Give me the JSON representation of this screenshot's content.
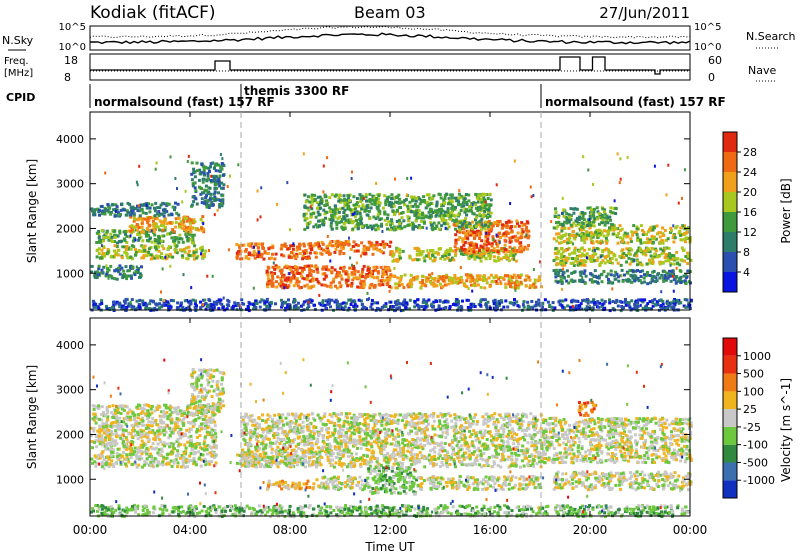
{
  "header": {
    "station": "Kodiak (fitACF)",
    "beam": "Beam 03",
    "date": "27/Jun/2011"
  },
  "noise_panel": {
    "left_label": "N.Sky",
    "right_label": "N.Search",
    "left_ticks": [
      "10^5",
      "10^0"
    ],
    "right_ticks": [
      "10^5",
      "10^0"
    ]
  },
  "freq_panel": {
    "left_label_1": "Freq.",
    "left_label_2": "[MHz]",
    "left_ticks": [
      "18",
      "8"
    ],
    "right_label": "Nave",
    "right_ticks": [
      "60",
      "0"
    ]
  },
  "cpid_panel": {
    "label": "CPID",
    "modes": [
      {
        "text": "normalsound (fast) 157 RF",
        "start_hour": 0
      },
      {
        "text": "themis 3300 RF",
        "start_hour": 6
      },
      {
        "text": "normalsound (fast) 157 RF",
        "start_hour": 18
      }
    ]
  },
  "x_axis": {
    "label": "Time UT",
    "ticks": [
      "00:00",
      "04:00",
      "08:00",
      "12:00",
      "16:00",
      "20:00",
      "00:00"
    ],
    "range_hours": [
      0,
      24
    ]
  },
  "chart_data": [
    {
      "type": "heatmap",
      "quantity": "Power",
      "ylabel": "Slant Range [km]",
      "yticks": [
        1000,
        2000,
        3000,
        4000
      ],
      "ylim": [
        180,
        4600
      ],
      "colorbar": {
        "label": "Power [dB]",
        "ticks": [
          "4",
          "8",
          "12",
          "16",
          "20",
          "24",
          "28"
        ],
        "colors": [
          "#0a14e0",
          "#2a4fb0",
          "#2e7d6b",
          "#3f9a3c",
          "#a8c81e",
          "#f0a01a",
          "#f06a14",
          "#e02a10"
        ]
      },
      "bands": [
        {
          "t0": 0.2,
          "t1": 4.6,
          "r0": 1350,
          "r1": 1650,
          "level": 4
        },
        {
          "t0": 0.2,
          "t1": 4.2,
          "r0": 1700,
          "r1": 2000,
          "level": 3
        },
        {
          "t0": 1.5,
          "t1": 4.5,
          "r0": 1950,
          "r1": 2300,
          "level": 5
        },
        {
          "t0": 0.0,
          "t1": 3.5,
          "r0": 2300,
          "r1": 2600,
          "level": 2
        },
        {
          "t0": 0.0,
          "t1": 2.0,
          "r0": 900,
          "r1": 1200,
          "level": 2
        },
        {
          "t0": 0.0,
          "t1": 24.0,
          "r0": 200,
          "r1": 450,
          "level": 1
        },
        {
          "t0": 4.0,
          "t1": 5.3,
          "r0": 2500,
          "r1": 3500,
          "level": 2
        },
        {
          "t0": 5.8,
          "t1": 9.0,
          "r0": 1350,
          "r1": 1700,
          "level": 6
        },
        {
          "t0": 7.0,
          "t1": 12.0,
          "r0": 700,
          "r1": 1200,
          "level": 6
        },
        {
          "t0": 9.0,
          "t1": 12.0,
          "r0": 1450,
          "r1": 1750,
          "level": 6
        },
        {
          "t0": 12.0,
          "t1": 18.0,
          "r0": 700,
          "r1": 1000,
          "level": 5
        },
        {
          "t0": 12.0,
          "t1": 17.0,
          "r0": 1300,
          "r1": 1600,
          "level": 4
        },
        {
          "t0": 14.5,
          "t1": 17.5,
          "r0": 1500,
          "r1": 2200,
          "level": 6
        },
        {
          "t0": 8.5,
          "t1": 16.0,
          "r0": 2000,
          "r1": 2800,
          "level": 3
        },
        {
          "t0": 18.5,
          "t1": 24.0,
          "r0": 1200,
          "r1": 1600,
          "level": 4
        },
        {
          "t0": 18.5,
          "t1": 24.0,
          "r0": 1700,
          "r1": 2100,
          "level": 4
        },
        {
          "t0": 18.5,
          "t1": 24.0,
          "r0": 800,
          "r1": 1100,
          "level": 2
        },
        {
          "t0": 18.5,
          "t1": 21.0,
          "r0": 2100,
          "r1": 2500,
          "level": 3
        }
      ]
    },
    {
      "type": "heatmap",
      "quantity": "Velocity",
      "ylabel": "Slant Range [km]",
      "yticks": [
        1000,
        2000,
        3000,
        4000
      ],
      "ylim": [
        180,
        4600
      ],
      "colorbar": {
        "label": "Velocity [m s^-1]",
        "ticks": [
          "1000",
          "500",
          "100",
          "25",
          "-25",
          "-100",
          "-500",
          "-1000"
        ],
        "colors": [
          "#1030c0",
          "#3a70b0",
          "#2f8a40",
          "#6cc83c",
          "#c8c8c8",
          "#f0b41e",
          "#f07a14",
          "#e83010",
          "#e00a0a"
        ]
      },
      "bands": [
        {
          "t0": 0.0,
          "t1": 5.0,
          "r0": 1300,
          "r1": 2700,
          "level": 4
        },
        {
          "t0": 6.0,
          "t1": 18.0,
          "r0": 1300,
          "r1": 2500,
          "level": 4
        },
        {
          "t0": 18.0,
          "t1": 24.0,
          "r0": 1400,
          "r1": 2400,
          "level": 4
        },
        {
          "t0": 4.0,
          "t1": 5.3,
          "r0": 2500,
          "r1": 3500,
          "level": 4
        },
        {
          "t0": 5.8,
          "t1": 8.5,
          "r0": 1300,
          "r1": 1600,
          "level": 4
        },
        {
          "t0": 7.0,
          "t1": 9.0,
          "r0": 800,
          "r1": 1000,
          "level": 5
        },
        {
          "t0": 9.0,
          "t1": 11.0,
          "r0": 800,
          "r1": 1100,
          "level": 4
        },
        {
          "t0": 11.0,
          "t1": 13.0,
          "r0": 700,
          "r1": 1300,
          "level": 3
        },
        {
          "t0": 13.0,
          "t1": 18.0,
          "r0": 800,
          "r1": 1100,
          "level": 4
        },
        {
          "t0": 0.0,
          "t1": 24.0,
          "r0": 200,
          "r1": 450,
          "level": 3
        },
        {
          "t0": 19.5,
          "t1": 20.2,
          "r0": 2450,
          "r1": 2750,
          "level": 6
        },
        {
          "t0": 18.5,
          "t1": 24.0,
          "r0": 800,
          "r1": 1200,
          "level": 4
        }
      ]
    }
  ]
}
